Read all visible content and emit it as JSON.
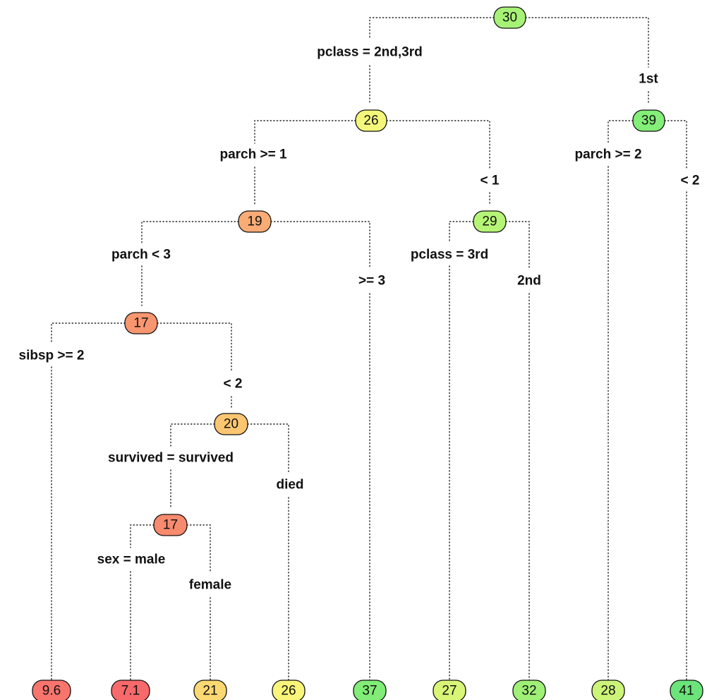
{
  "tree": {
    "nodes": {
      "root": {
        "value": "30",
        "color": "#a6f276"
      },
      "n26": {
        "value": "26",
        "color": "#f5f77a"
      },
      "n39": {
        "value": "39",
        "color": "#83ee78"
      },
      "n19": {
        "value": "19",
        "color": "#f9ac76"
      },
      "n29": {
        "value": "29",
        "color": "#b6f476"
      },
      "n17a": {
        "value": "17",
        "color": "#f8966f"
      },
      "n20": {
        "value": "20",
        "color": "#fbc571"
      },
      "n17b": {
        "value": "17",
        "color": "#f88a6d"
      },
      "leaf1": {
        "value": "9.6",
        "color": "#f8756e"
      },
      "leaf2": {
        "value": "7.1",
        "color": "#f8696b"
      },
      "leaf3": {
        "value": "21",
        "color": "#fbd872"
      },
      "leaf4": {
        "value": "26",
        "color": "#f8f57a"
      },
      "leaf5": {
        "value": "37",
        "color": "#81ec76"
      },
      "leaf6": {
        "value": "27",
        "color": "#d8f577"
      },
      "leaf7": {
        "value": "32",
        "color": "#9ff076"
      },
      "leaf8": {
        "value": "28",
        "color": "#ccf478"
      },
      "leaf9": {
        "value": "41",
        "color": "#6be57a"
      }
    },
    "splits": {
      "root_left": "pclass = 2nd,3rd",
      "root_right": "1st",
      "n26_left": "parch >= 1",
      "n26_right": "< 1",
      "n39_left": "parch >= 2",
      "n39_right": "< 2",
      "n19_left": "parch < 3",
      "n19_right": ">= 3",
      "n29_left": "pclass = 3rd",
      "n29_right": "2nd",
      "n17a_left": "sibsp >= 2",
      "n17a_right": "< 2",
      "n20_left": "survived = survived",
      "n20_right": "died",
      "n17b_left": "sex = male",
      "n17b_right": "female"
    }
  }
}
